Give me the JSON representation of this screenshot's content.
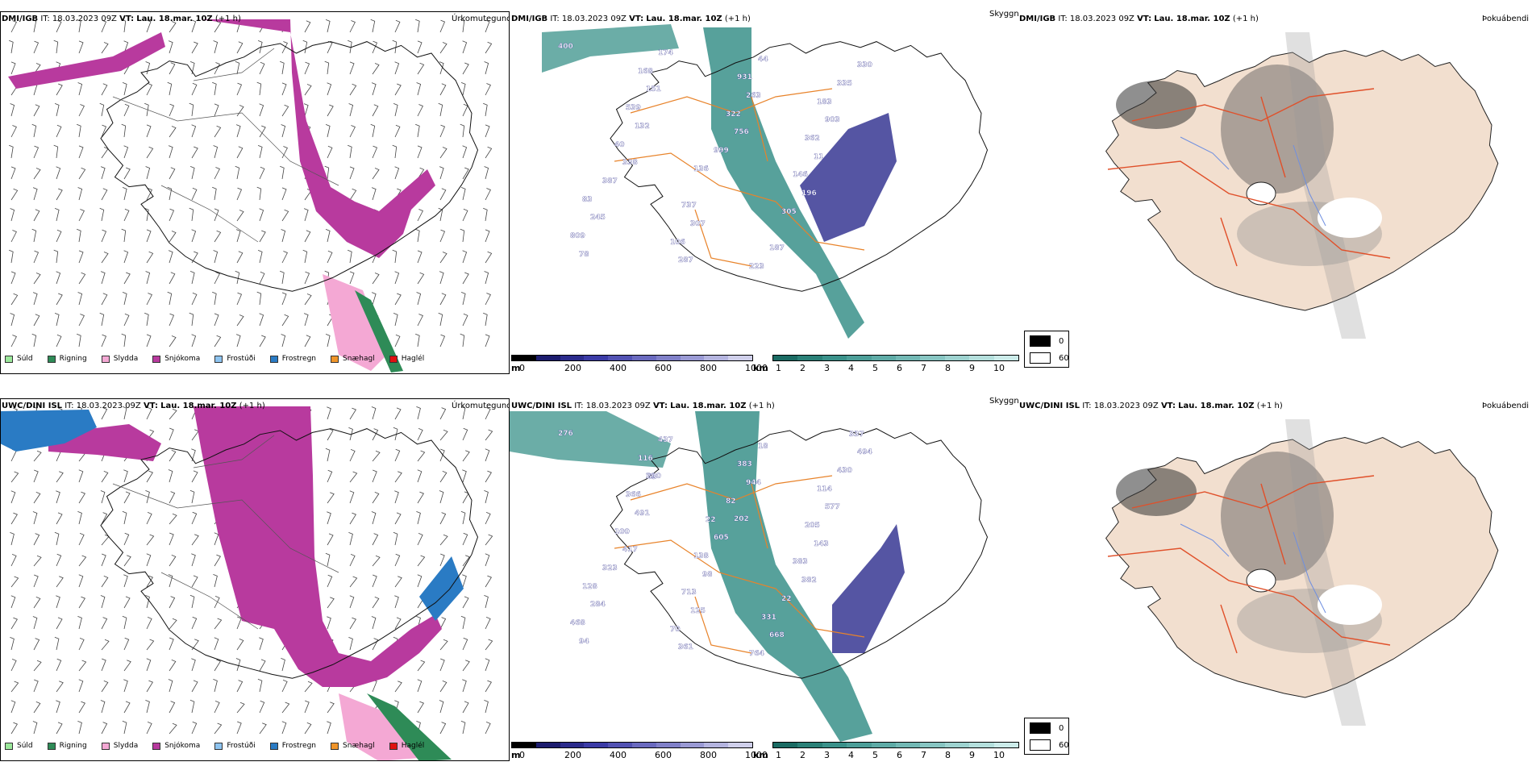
{
  "rows": [
    {
      "model": "DMI/IGB",
      "left": {
        "model": "DMI/IGB",
        "it_label": "IT:",
        "it_value": "18.03.2023 09Z",
        "vt_label": "VT:",
        "vt_value": "Lau. 18.mar. 10Z",
        "lead": "(+1 h)",
        "title": "Úrkomutegund"
      },
      "mid": {
        "model": "DMI/IGB",
        "it_label": "IT:",
        "it_value": "18.03.2023 09Z",
        "vt_label": "VT:",
        "vt_value": "Lau. 18.mar. 10Z",
        "lead": "(+1 h)",
        "title": "Skyggni"
      },
      "right": {
        "model": "DMI/IGB",
        "it_label": "IT:",
        "it_value": "18.03.2023 09Z",
        "vt_label": "VT:",
        "vt_value": "Lau. 18.mar. 10Z",
        "lead": "(+1 h)",
        "title": "Þokuábendi"
      },
      "cloud_labels": [
        "400",
        "151",
        "756",
        "146",
        "245",
        "287",
        "931",
        "903",
        "338",
        "737",
        "187",
        "330",
        "539",
        "999",
        "196",
        "809",
        "174",
        "263",
        "362",
        "387",
        "307",
        "223",
        "335",
        "132",
        "136",
        "305",
        "78",
        "168",
        "322",
        "11",
        "83",
        "106",
        "44",
        "183",
        "40"
      ]
    },
    {
      "model": "UWC/DINI ISL",
      "left": {
        "model": "UWC/DINI ISL",
        "it_label": "IT:",
        "it_value": "18.03.2023 09Z",
        "vt_label": "VT:",
        "vt_value": "Lau. 18.mar. 10Z",
        "lead": "(+1 h)",
        "title": "Úrkomutegund"
      },
      "mid": {
        "model": "UWC/DINI ISL",
        "it_label": "IT:",
        "it_value": "18.03.2023 09Z",
        "vt_label": "VT:",
        "vt_value": "Lau. 18.mar. 10Z",
        "lead": "(+1 h)",
        "title": "Skyggni"
      },
      "right": {
        "model": "UWC/DINI ISL",
        "it_label": "IT:",
        "it_value": "18.03.2023 09Z",
        "vt_label": "VT:",
        "vt_value": "Lau. 18.mar. 10Z",
        "lead": "(+1 h)",
        "title": "Þokuábendi"
      },
      "cloud_labels": [
        "276",
        "290",
        "202",
        "383",
        "284",
        "361",
        "383",
        "577",
        "417",
        "713",
        "668",
        "494",
        "366",
        "605",
        "382",
        "468",
        "437",
        "944",
        "205",
        "323",
        "125",
        "764",
        "430",
        "491",
        "138",
        "22",
        "94",
        "116",
        "82",
        "143",
        "128",
        "70",
        "18",
        "114",
        "100",
        "98",
        "331",
        "337",
        "63",
        "22"
      ]
    }
  ],
  "precip_legend": [
    {
      "label": "Súld",
      "color": "#9be89b"
    },
    {
      "label": "Rigning",
      "color": "#2e8b57"
    },
    {
      "label": "Slydda",
      "color": "#f4a8d4"
    },
    {
      "label": "Snjókoma",
      "color": "#b83a9e"
    },
    {
      "label": "Frostúði",
      "color": "#8ec4f0"
    },
    {
      "label": "Frostregn",
      "color": "#2a7bc4"
    },
    {
      "label": "Snæhagl",
      "color": "#f0952a"
    },
    {
      "label": "Haglél",
      "color": "#e01010"
    }
  ],
  "cloud_base_bar": {
    "unit": "m",
    "ticks": [
      "0",
      "200",
      "400",
      "600",
      "800",
      "1000"
    ],
    "colors": [
      "#000000",
      "#1c1c6e",
      "#2b2b8c",
      "#3b3ba6",
      "#5252b3",
      "#6a6abf",
      "#8080c8",
      "#9a9ad4",
      "#b4b4df",
      "#cfcfea"
    ]
  },
  "visibility_bar": {
    "unit": "km",
    "ticks": [
      "1",
      "2",
      "3",
      "4",
      "5",
      "6",
      "7",
      "8",
      "9",
      "10"
    ],
    "colors": [
      "#1a6b63",
      "#2a8077",
      "#3a918a",
      "#4c9e98",
      "#5eaba6",
      "#72b8b4",
      "#87c5c2",
      "#9dd2cf",
      "#b4dfdc",
      "#cbebe9"
    ]
  },
  "fog_key": [
    {
      "label": "0",
      "color": "#000000"
    },
    {
      "label": "60",
      "color": "#ffffff"
    }
  ],
  "colors": {
    "snow": "#b83a9e",
    "sleet": "#f4a8d4",
    "rain": "#2e8b57",
    "freezing_rain": "#2a7bc4",
    "low_vis": "#3a918a",
    "cloud_base": "#2b2b8c",
    "roads": "#e8832a",
    "land": "#f2dfcf",
    "fog_roads": "#e0502a",
    "rivers": "#6f8fe0"
  }
}
